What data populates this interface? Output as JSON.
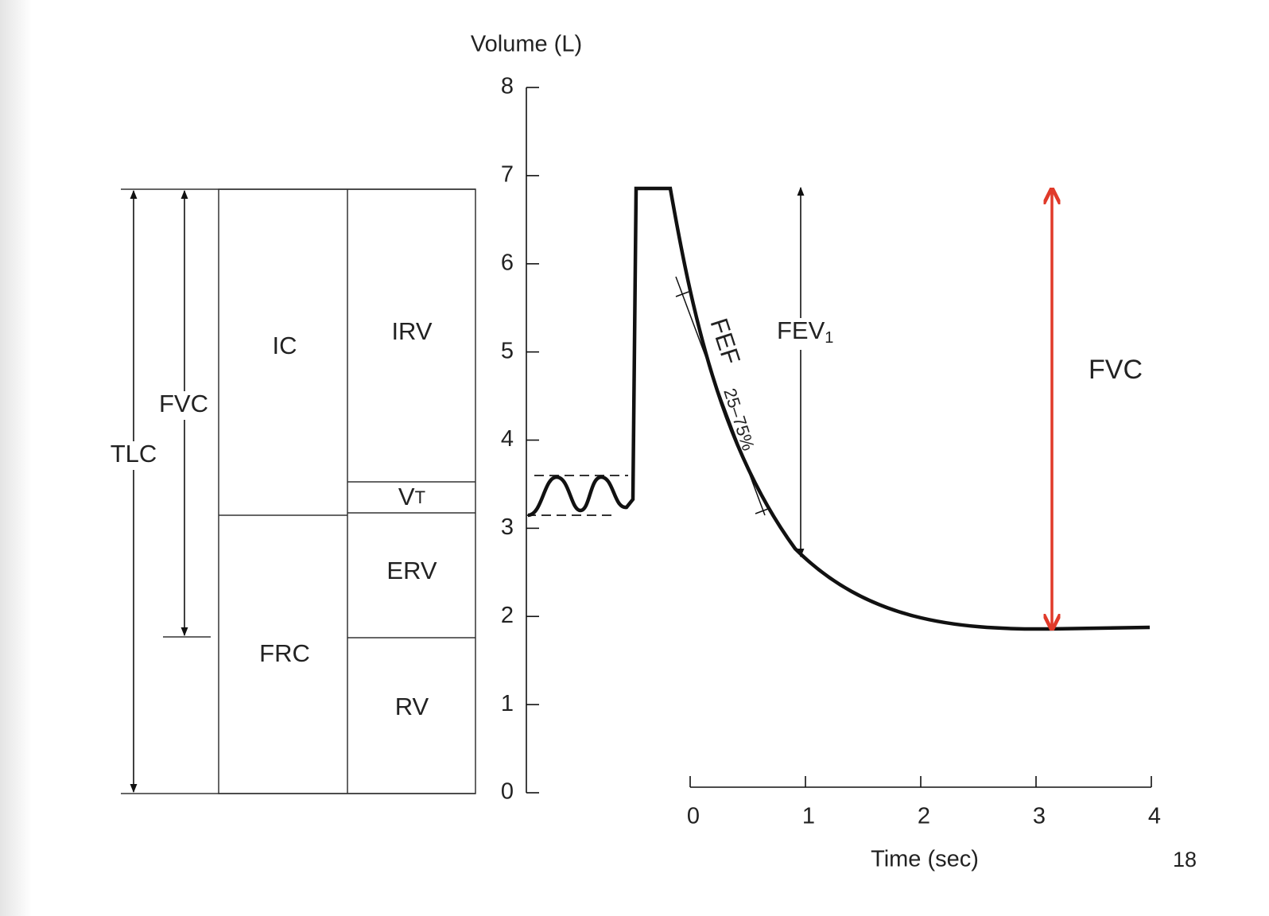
{
  "y_axis": {
    "label": "Volume (L)",
    "ticks": [
      0,
      1,
      2,
      3,
      4,
      5,
      6,
      7,
      8
    ]
  },
  "x_axis": {
    "label": "Time (sec)",
    "ticks": [
      0,
      1,
      2,
      3,
      4
    ]
  },
  "boxes": {
    "ic": "IC",
    "frc": "FRC",
    "irv": "IRV",
    "vt": {
      "main": "V",
      "sub": "T"
    },
    "erv": "ERV",
    "rv": "RV"
  },
  "arrows": {
    "tlc": "TLC",
    "fvc_left": "FVC",
    "fev1": {
      "main": "FEV",
      "sub": "1"
    },
    "fef": {
      "main": "FEF",
      "sub": "25–75%"
    },
    "fvc_right": "FVC"
  },
  "page_number": "18"
}
